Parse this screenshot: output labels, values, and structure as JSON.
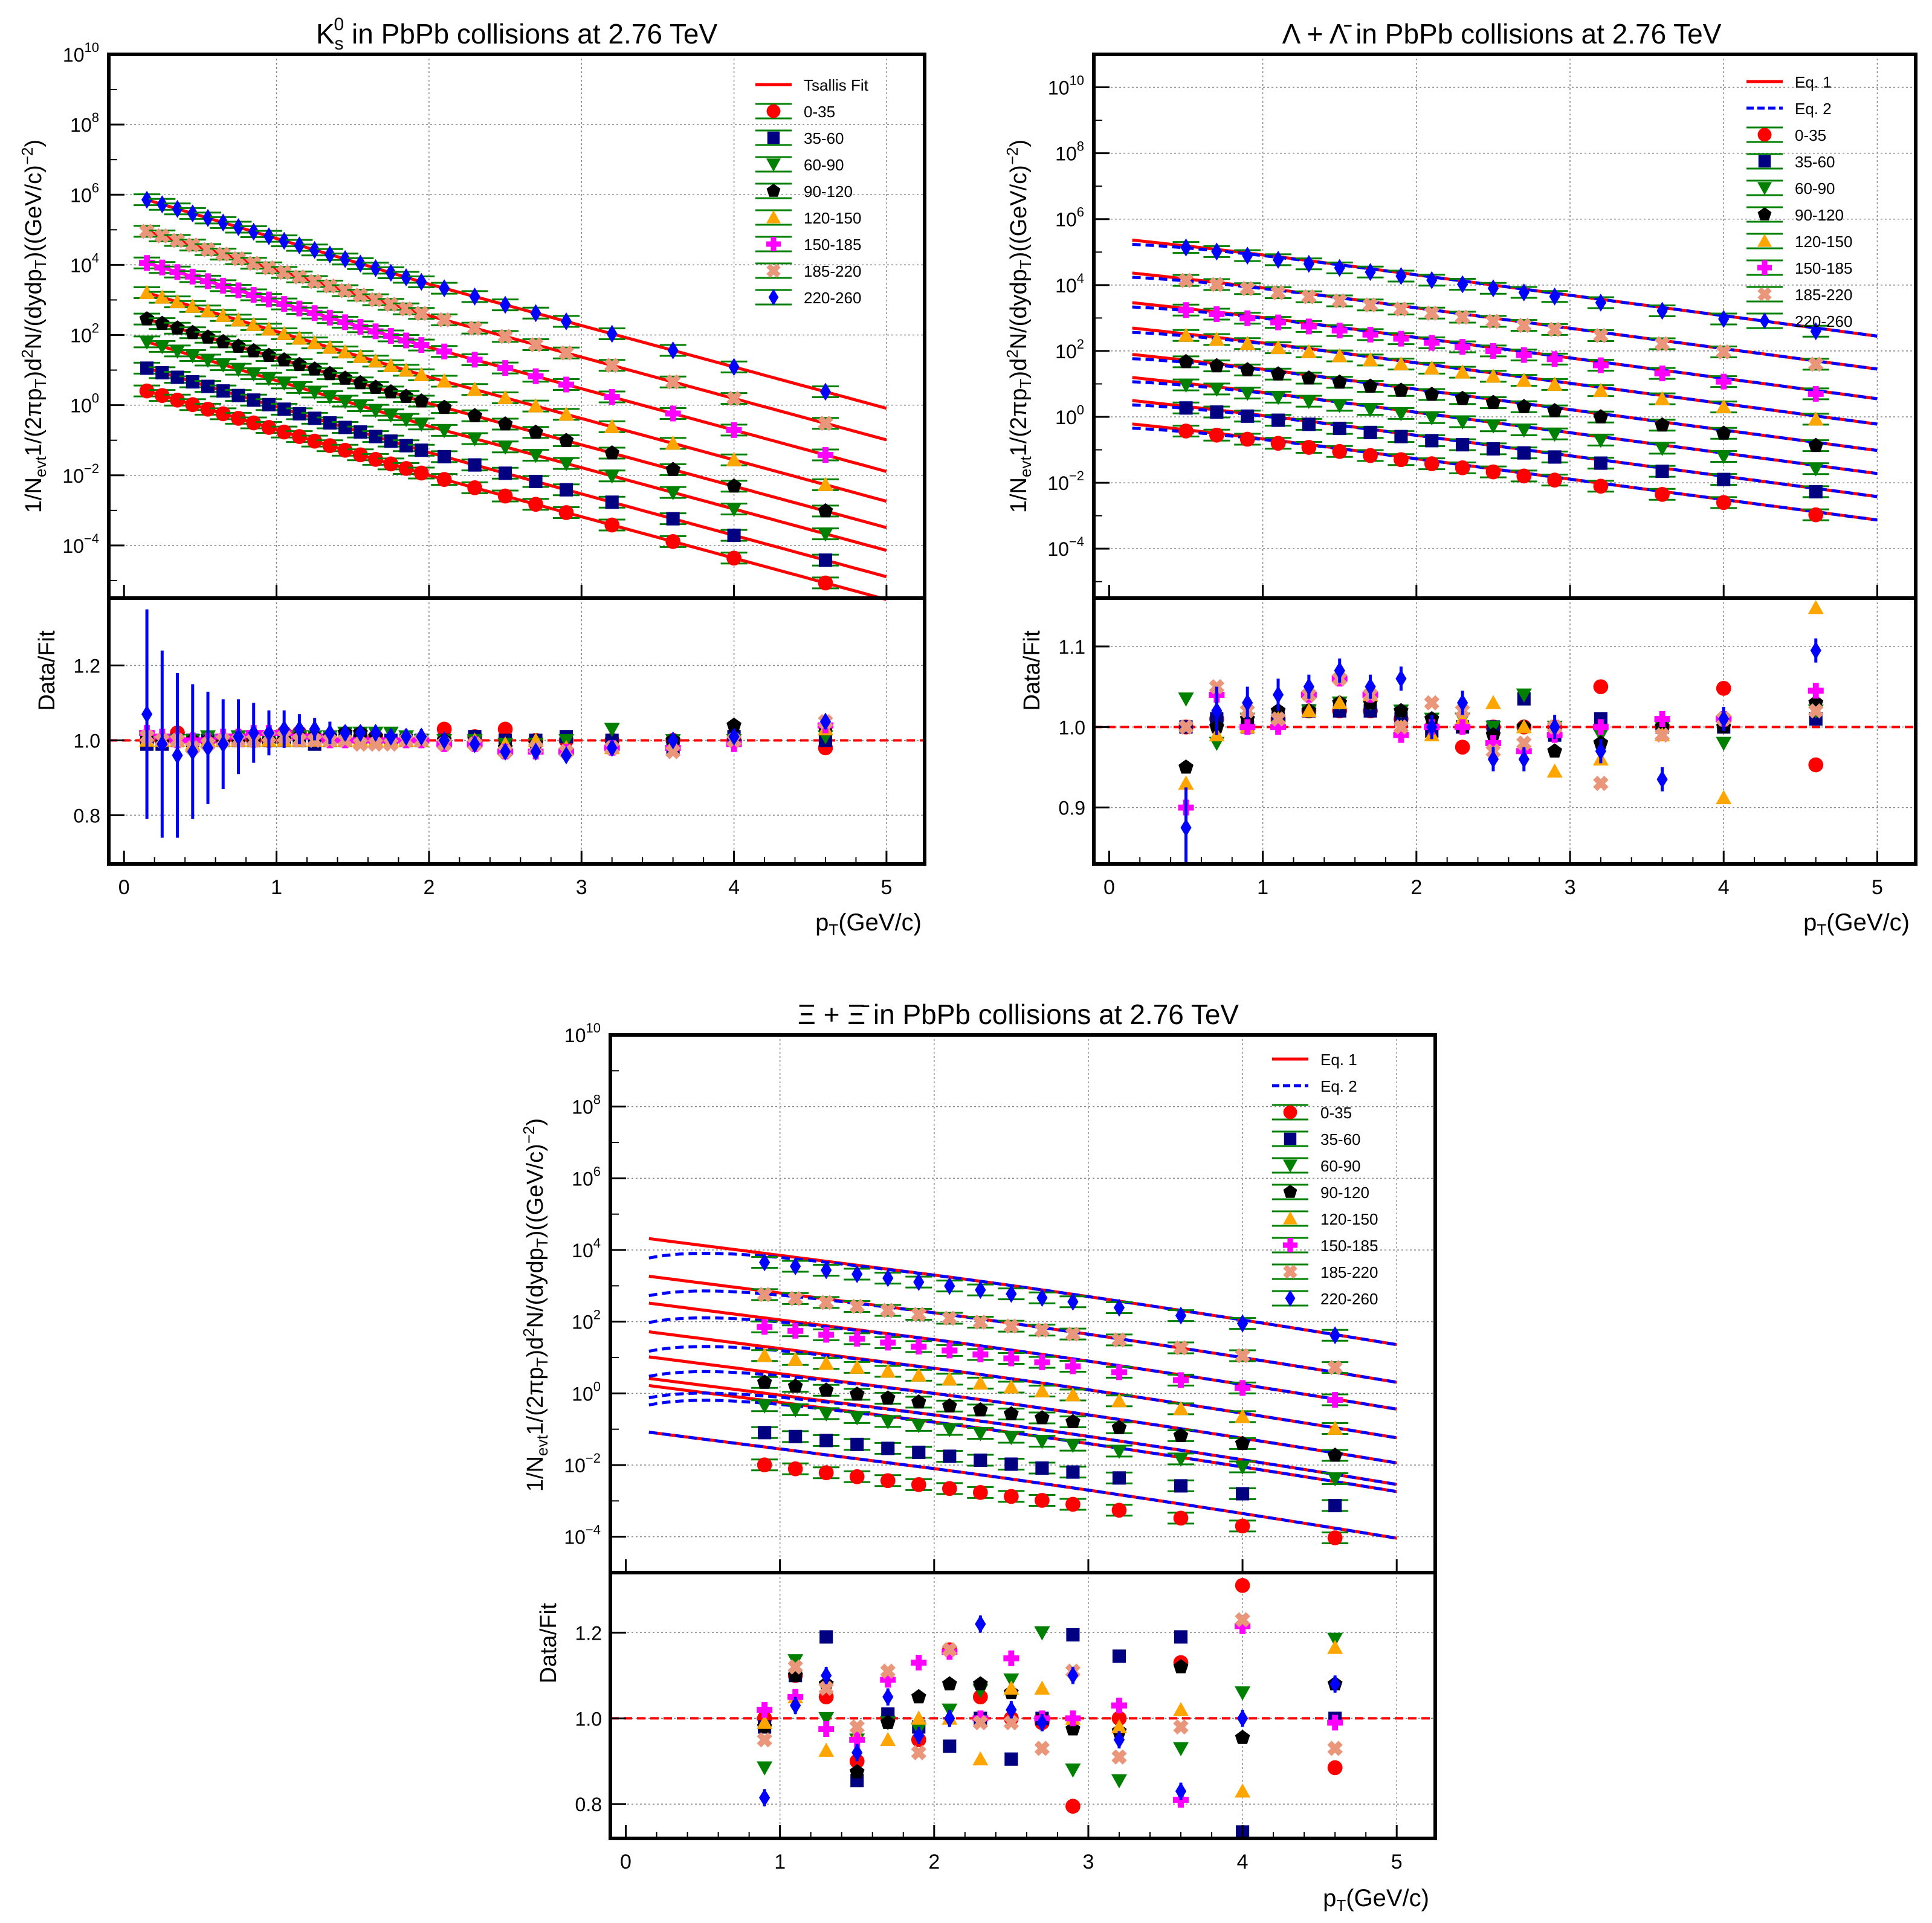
{
  "colors": {
    "red": "#ff0000",
    "navy": "#000080",
    "green": "#008000",
    "black": "#000000",
    "orange": "#ffa500",
    "magenta": "#ff00ff",
    "salmon": "#e9967a",
    "blue": "#0000ff",
    "fit_red": "#ff0000",
    "fit_blue": "#0000ff",
    "ratio_line": "#ff0000",
    "grid": "#888888"
  },
  "common": {
    "xlabel": "p",
    "xlabel_sub": "T",
    "xlabel_tail": "(GeV/c)",
    "ylabel_segments": [
      "1/N",
      "evt",
      "1/(2πp",
      "T",
      ")d",
      "2",
      "N/(dydp",
      "T",
      ")((GeV/c)",
      "−2",
      ")"
    ],
    "ratio_ylabel": "Data/Fit",
    "xticks": [
      "0",
      "1",
      "2",
      "3",
      "4",
      "5"
    ],
    "yticks_log": [
      {
        "base": "10",
        "exp": "10",
        "value": 10
      },
      {
        "base": "10",
        "exp": "8",
        "value": 8
      },
      {
        "base": "10",
        "exp": "6",
        "value": 6
      },
      {
        "base": "10",
        "exp": "4",
        "value": 4
      },
      {
        "base": "10",
        "exp": "2",
        "value": 2
      },
      {
        "base": "10",
        "exp": "0",
        "value": 0
      },
      {
        "base": "10",
        "exp": "−2",
        "value": -2
      },
      {
        "base": "10",
        "exp": "−4",
        "value": -4
      }
    ]
  },
  "chart_data": [
    {
      "panel": "kshort",
      "type": "scatter",
      "title": {
        "main": "K",
        "sup": "0",
        "sub": "s",
        "rest": " in PbPb collisions at 2.76 TeV"
      },
      "x_scale": "linear",
      "y_scale": "log",
      "xlim": [
        -0.1,
        5.25
      ],
      "ylim_log10": [
        -5.5,
        10
      ],
      "ratio_ylim": [
        0.67,
        1.38
      ],
      "ratio_yticks": [
        "0.8",
        "1.0",
        "1.2"
      ],
      "legend": {
        "position": "top-right",
        "lines": [
          {
            "label": "Tsallis Fit",
            "style": "solid",
            "color": "red"
          }
        ],
        "markers": [
          "0-35",
          "35-60",
          "60-90",
          "90-120",
          "120-150",
          "150-185",
          "185-220",
          "220-260"
        ]
      },
      "fit": {
        "style": "solid",
        "color": "red",
        "x_start": 0.15,
        "x_end": 5.0
      },
      "series": [
        {
          "name": "0-35",
          "color": "red",
          "marker": "circle",
          "logA": 0.6,
          "fitlogA": 0.6
        },
        {
          "name": "35-60",
          "color": "navy",
          "marker": "square",
          "logA": 1.25,
          "fitlogA": 1.25
        },
        {
          "name": "60-90",
          "color": "green",
          "marker": "triangle-down",
          "logA": 2.0,
          "fitlogA": 2.0
        },
        {
          "name": "90-120",
          "color": "black",
          "marker": "pentagon",
          "logA": 2.65,
          "fitlogA": 2.65
        },
        {
          "name": "120-150",
          "color": "orange",
          "marker": "triangle-up",
          "logA": 3.4,
          "fitlogA": 3.4
        },
        {
          "name": "150-185",
          "color": "magenta",
          "marker": "cross",
          "logA": 4.25,
          "fitlogA": 4.25
        },
        {
          "name": "185-220",
          "color": "salmon",
          "marker": "x-cross",
          "logA": 5.15,
          "fitlogA": 5.15
        },
        {
          "name": "220-260",
          "color": "blue",
          "marker": "diamond",
          "logA": 6.05,
          "fitlogA": 6.05
        }
      ],
      "shape": {
        "kind": "kshort"
      },
      "x_points": [
        0.15,
        0.25,
        0.35,
        0.45,
        0.55,
        0.65,
        0.75,
        0.85,
        0.95,
        1.05,
        1.15,
        1.25,
        1.35,
        1.45,
        1.55,
        1.65,
        1.75,
        1.85,
        1.95,
        2.1,
        2.3,
        2.5,
        2.7,
        2.9,
        3.2,
        3.6,
        4.0,
        4.6
      ],
      "ratio_x": [
        0.15,
        0.25,
        0.35,
        0.45,
        0.55,
        0.65,
        0.75,
        0.85,
        0.95,
        1.05,
        1.15,
        1.25,
        1.35,
        1.45,
        1.55,
        1.65,
        1.75,
        1.85,
        1.95,
        2.1,
        2.3,
        2.5,
        2.7,
        2.9,
        3.2,
        3.6,
        4.0,
        4.6
      ],
      "ratio_values": {
        "0-35": [
          1.0,
          1.0,
          1.02,
          1.0,
          1.0,
          1.0,
          1.01,
          1.0,
          1.0,
          1.02,
          1.02,
          1.01,
          1.0,
          1.0,
          1.01,
          1.01,
          1.0,
          1.0,
          1.0,
          1.03,
          1.01,
          1.03,
          1.0,
          1.0,
          1.0,
          1.0,
          1.0,
          0.98
        ],
        "35-60": [
          0.99,
          0.99,
          1.0,
          1.0,
          1.0,
          1.0,
          1.0,
          1.0,
          1.0,
          1.0,
          1.0,
          0.99,
          1.0,
          1.0,
          1.0,
          1.0,
          1.0,
          1.0,
          1.0,
          1.0,
          1.01,
          1.0,
          1.0,
          1.01,
          1.0,
          0.98,
          1.01,
          1.0
        ],
        "60-90": [
          1.0,
          1.0,
          1.0,
          1.0,
          1.01,
          1.0,
          1.01,
          1.0,
          1.0,
          1.01,
          1.01,
          1.01,
          1.01,
          1.02,
          1.02,
          1.02,
          1.02,
          1.01,
          1.0,
          1.0,
          1.0,
          0.99,
          0.99,
          1.0,
          1.03,
          1.0,
          1.0,
          1.01
        ],
        "90-120": [
          1.01,
          1.0,
          1.0,
          1.0,
          1.0,
          1.0,
          1.0,
          1.0,
          1.0,
          1.0,
          1.01,
          1.01,
          1.01,
          1.02,
          1.02,
          1.01,
          1.0,
          1.0,
          1.0,
          1.0,
          0.99,
          0.98,
          0.99,
          0.97,
          0.98,
          1.0,
          1.04,
          1.03
        ],
        "120-150": [
          1.0,
          1.0,
          1.0,
          0.99,
          1.0,
          1.0,
          1.0,
          1.0,
          1.0,
          1.0,
          1.0,
          1.0,
          1.0,
          1.0,
          1.0,
          1.0,
          1.0,
          1.0,
          1.0,
          1.0,
          1.0,
          0.99,
          1.0,
          0.98,
          0.98,
          0.99,
          1.0,
          1.03
        ],
        "150-185": [
          1.02,
          1.01,
          1.0,
          1.0,
          1.0,
          1.01,
          1.01,
          1.02,
          1.02,
          1.02,
          1.01,
          1.01,
          1.0,
          1.0,
          1.0,
          1.0,
          1.0,
          1.0,
          1.0,
          0.99,
          0.99,
          0.97,
          0.97,
          0.97,
          0.98,
          0.98,
          0.99,
          1.04
        ],
        "185-220": [
          1.01,
          1.0,
          1.0,
          0.98,
          0.99,
          1.0,
          1.0,
          1.0,
          1.01,
          1.01,
          1.0,
          1.0,
          1.0,
          1.0,
          0.99,
          0.99,
          0.99,
          1.0,
          1.0,
          0.99,
          0.99,
          0.97,
          0.98,
          0.97,
          0.98,
          0.97,
          1.0,
          1.05
        ],
        "220-260": [
          1.07,
          0.99,
          0.96,
          0.97,
          0.98,
          0.99,
          1.01,
          1.02,
          1.02,
          1.03,
          1.03,
          1.03,
          1.02,
          1.02,
          1.02,
          1.02,
          1.01,
          1.01,
          1.01,
          1.0,
          0.99,
          0.97,
          0.97,
          0.96,
          0.98,
          1.0,
          1.01,
          1.05
        ]
      },
      "ratio_errors_blue": [
        0.28,
        0.25,
        0.22,
        0.18,
        0.15,
        0.12,
        0.1,
        0.08,
        0.06,
        0.05,
        0.04,
        0.03,
        0.03,
        0.02,
        0.02,
        0.02,
        0.02,
        0.02,
        0.02,
        0.01,
        0.01,
        0.01,
        0.01,
        0.01,
        0.01,
        0.01,
        0.01,
        0.01
      ]
    },
    {
      "panel": "lambda",
      "type": "scatter",
      "title": {
        "main": "Λ + Λ̄",
        "sup": "",
        "sub": "",
        "rest": " in PbPb collisions at 2.76 TeV"
      },
      "x_scale": "linear",
      "y_scale": "log",
      "xlim": [
        -0.1,
        5.25
      ],
      "ylim_log10": [
        -5.5,
        11
      ],
      "ratio_ylim": [
        0.83,
        1.16
      ],
      "ratio_yticks": [
        "0.9",
        "1.0",
        "1.1"
      ],
      "legend": {
        "position": "top-right",
        "lines": [
          {
            "label": "Eq. 1",
            "style": "solid",
            "color": "red"
          },
          {
            "label": "Eq. 2",
            "style": "dashed",
            "color": "blue"
          }
        ],
        "markers": [
          "0-35",
          "35-60",
          "60-90",
          "90-120",
          "120-150",
          "150-185",
          "185-220",
          "220-260"
        ]
      },
      "fit": {
        "style": "both",
        "x_start": 0.15,
        "x_end": 5.0
      },
      "series": [
        {
          "name": "0-35",
          "color": "red",
          "marker": "circle",
          "logA": -0.12,
          "fitlogA": -0.03
        },
        {
          "name": "35-60",
          "color": "navy",
          "marker": "square",
          "logA": 0.58,
          "fitlogA": 0.68
        },
        {
          "name": "60-90",
          "color": "green",
          "marker": "triangle-down",
          "logA": 1.28,
          "fitlogA": 1.38
        },
        {
          "name": "90-120",
          "color": "black",
          "marker": "pentagon",
          "logA": 1.98,
          "fitlogA": 2.08
        },
        {
          "name": "120-150",
          "color": "orange",
          "marker": "triangle-up",
          "logA": 2.78,
          "fitlogA": 2.88
        },
        {
          "name": "150-185",
          "color": "magenta",
          "marker": "cross",
          "logA": 3.55,
          "fitlogA": 3.65
        },
        {
          "name": "185-220",
          "color": "salmon",
          "marker": "x-cross",
          "logA": 4.45,
          "fitlogA": 4.55
        },
        {
          "name": "220-260",
          "color": "blue",
          "marker": "diamond",
          "logA": 5.45,
          "fitlogA": 5.55
        }
      ],
      "shape": {
        "kind": "lambda"
      },
      "x_points": [
        0.5,
        0.7,
        0.9,
        1.1,
        1.3,
        1.5,
        1.7,
        1.9,
        2.1,
        2.3,
        2.5,
        2.7,
        2.9,
        3.2,
        3.6,
        4.0,
        4.6
      ],
      "ratio_x": [
        0.5,
        0.7,
        0.9,
        1.1,
        1.3,
        1.5,
        1.7,
        1.9,
        2.1,
        2.3,
        2.5,
        2.7,
        2.9,
        3.2,
        3.6,
        4.0,
        4.6
      ],
      "ratio_values": {
        "0-35": [
          1.0,
          1.01,
          1.0,
          1.01,
          1.02,
          1.02,
          1.02,
          1.01,
          1.0,
          0.975,
          1.0,
          1.0,
          1.0,
          1.05,
          1.0,
          1.048,
          0.953
        ],
        "35-60": [
          1.0,
          1.01,
          1.0,
          1.01,
          1.02,
          1.02,
          1.02,
          1.01,
          0.995,
          1.0,
          1.0,
          1.035,
          0.99,
          1.01,
          1.0,
          1.0,
          1.01
        ],
        "60-90": [
          1.035,
          0.98,
          1.01,
          1.0,
          1.02,
          1.03,
          1.03,
          1.02,
          1.01,
          1.01,
          1.0,
          1.04,
          1.0,
          0.99,
          1.0,
          0.98,
          1.02
        ],
        "90-120": [
          0.95,
          1.0,
          1.01,
          1.02,
          1.02,
          1.03,
          1.03,
          1.02,
          1.01,
          1.0,
          0.99,
          1.0,
          0.97,
          0.98,
          1.0,
          1.0,
          1.03
        ],
        "120-150": [
          0.93,
          0.99,
          1.0,
          1.01,
          1.02,
          1.03,
          1.04,
          1.0,
          0.99,
          1.01,
          1.03,
          1.0,
          0.945,
          0.96,
          0.99,
          0.912,
          1.148
        ],
        "150-185": [
          0.9,
          1.04,
          1.0,
          1.0,
          1.04,
          1.06,
          1.04,
          0.99,
          1.0,
          1.0,
          0.98,
          0.97,
          0.99,
          1.0,
          1.01,
          1.01,
          1.045
        ],
        "185-220": [
          1.0,
          1.05,
          1.02,
          1.01,
          1.04,
          1.06,
          1.04,
          1.0,
          1.03,
          1.02,
          0.97,
          0.98,
          1.0,
          0.93,
          0.99,
          1.01,
          1.02
        ],
        "220-260": [
          0.875,
          1.02,
          1.03,
          1.04,
          1.05,
          1.07,
          1.05,
          1.06,
          1.0,
          1.03,
          0.96,
          0.96,
          1.0,
          0.97,
          0.935,
          1.01,
          1.095
        ]
      },
      "ratio_errors_blue": [
        0.05,
        0.03,
        0.02,
        0.02,
        0.015,
        0.015,
        0.015,
        0.015,
        0.015,
        0.015,
        0.015,
        0.015,
        0.015,
        0.015,
        0.015,
        0.015,
        0.015
      ]
    },
    {
      "panel": "xi",
      "type": "scatter",
      "title": {
        "main": "Ξ + Ξ̄",
        "sup": "",
        "sub": "",
        "rest": " in PbPb collisions at 2.76 TeV"
      },
      "x_scale": "linear",
      "y_scale": "log",
      "xlim": [
        -0.1,
        5.25
      ],
      "ylim_log10": [
        -5,
        10
      ],
      "ratio_ylim": [
        0.72,
        1.34
      ],
      "ratio_yticks": [
        "0.8",
        "1.0",
        "1.2"
      ],
      "legend": {
        "position": "top-right",
        "lines": [
          {
            "label": "Eq. 1",
            "style": "solid",
            "color": "red"
          },
          {
            "label": "Eq. 2",
            "style": "dashed",
            "color": "blue"
          }
        ],
        "markers": [
          "0-35",
          "35-60",
          "60-90",
          "90-120",
          "120-150",
          "150-185",
          "185-220",
          "220-260"
        ]
      },
      "fit": {
        "style": "both",
        "x_start": 0.15,
        "x_end": 5.0
      },
      "series": [
        {
          "name": "0-35",
          "color": "red",
          "marker": "circle",
          "logA": -1.5,
          "fitlogA": -1.0
        },
        {
          "name": "35-60",
          "color": "navy",
          "marker": "square",
          "logA": -0.6,
          "fitlogA": 0.3
        },
        {
          "name": "60-90",
          "color": "green",
          "marker": "triangle-down",
          "logA": 0.15,
          "fitlogA": 0.5
        },
        {
          "name": "90-120",
          "color": "black",
          "marker": "pentagon",
          "logA": 0.8,
          "fitlogA": 1.1
        },
        {
          "name": "120-150",
          "color": "orange",
          "marker": "triangle-up",
          "logA": 1.55,
          "fitlogA": 1.8
        },
        {
          "name": "150-185",
          "color": "magenta",
          "marker": "cross",
          "logA": 2.35,
          "fitlogA": 2.6
        },
        {
          "name": "185-220",
          "color": "salmon",
          "marker": "x-cross",
          "logA": 3.25,
          "fitlogA": 3.35
        },
        {
          "name": "220-260",
          "color": "blue",
          "marker": "diamond",
          "logA": 4.15,
          "fitlogA": 4.4
        }
      ],
      "shape": {
        "kind": "xi"
      },
      "x_points": [
        0.9,
        1.1,
        1.3,
        1.5,
        1.7,
        1.9,
        2.1,
        2.3,
        2.5,
        2.7,
        2.9,
        3.2,
        3.6,
        4.0,
        4.6
      ],
      "ratio_x": [
        0.9,
        1.1,
        1.3,
        1.5,
        1.7,
        1.9,
        2.1,
        2.3,
        2.5,
        2.7,
        2.9,
        3.2,
        3.6,
        4.0,
        4.6
      ],
      "ratio_values": {
        "0-35": [
          1.0,
          1.1,
          1.05,
          0.9,
          1.0,
          0.95,
          1.16,
          1.05,
          1.0,
          0.99,
          0.795,
          1.0,
          1.13,
          1.31,
          0.885
        ],
        "35-60": [
          0.98,
          1.1,
          1.19,
          0.855,
          1.01,
          0.98,
          0.935,
          1.0,
          0.905,
          1.0,
          1.195,
          1.145,
          1.19,
          0.735,
          1.0
        ],
        "60-90": [
          0.885,
          1.135,
          1.0,
          0.95,
          0.99,
          0.975,
          1.02,
          1.065,
          1.09,
          1.2,
          0.88,
          0.855,
          0.93,
          1.06,
          1.185
        ],
        "90-120": [
          0.98,
          1.1,
          1.08,
          0.875,
          0.99,
          1.05,
          1.08,
          1.08,
          1.06,
          1.0,
          0.975,
          0.97,
          1.12,
          0.955,
          1.08
        ],
        "120-150": [
          0.99,
          1.05,
          0.925,
          0.96,
          0.95,
          1.0,
          1.0,
          0.905,
          1.07,
          1.07,
          1.0,
          0.98,
          1.02,
          0.83,
          1.165
        ],
        "150-185": [
          1.02,
          1.05,
          0.975,
          0.95,
          1.09,
          1.13,
          1.155,
          1.0,
          1.14,
          1.0,
          1.0,
          1.03,
          0.81,
          1.215,
          0.99
        ],
        "185-220": [
          0.95,
          1.12,
          1.07,
          0.98,
          1.11,
          0.92,
          1.16,
          0.99,
          0.99,
          0.93,
          1.11,
          0.91,
          0.98,
          1.23,
          0.93
        ],
        "220-260": [
          0.815,
          1.03,
          1.1,
          0.92,
          1.05,
          0.96,
          1.0,
          1.22,
          1.02,
          0.99,
          1.1,
          0.95,
          0.83,
          1.0,
          1.08
        ]
      },
      "ratio_errors_blue": [
        0.02,
        0.02,
        0.02,
        0.02,
        0.02,
        0.02,
        0.02,
        0.02,
        0.02,
        0.02,
        0.02,
        0.02,
        0.02,
        0.02,
        0.02
      ]
    }
  ]
}
